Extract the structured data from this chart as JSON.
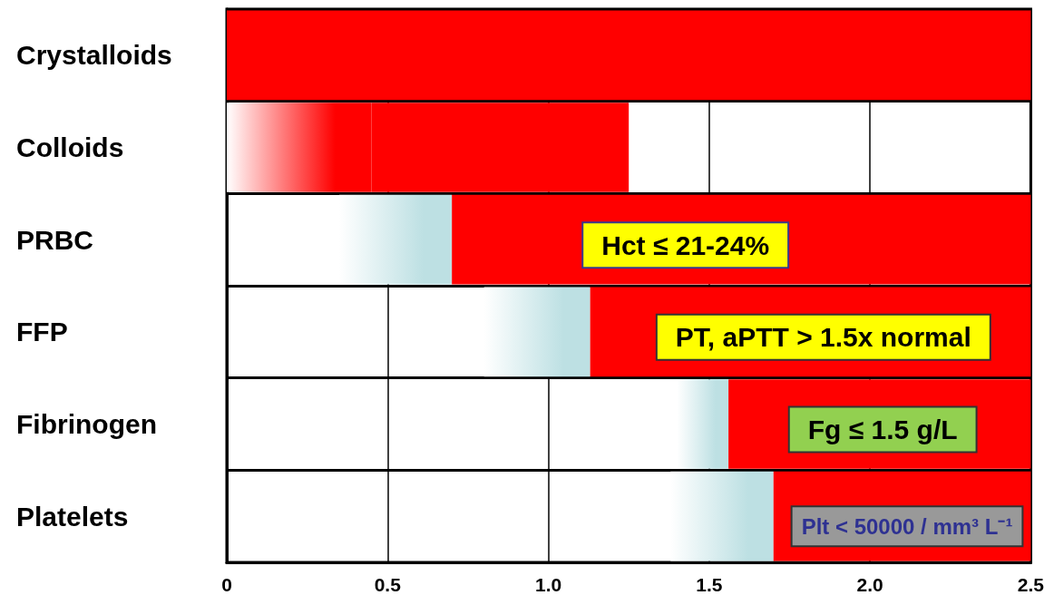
{
  "chart_data": {
    "type": "bar",
    "orientation": "horizontal",
    "categories": [
      "Crystalloids",
      "Colloids",
      "PRBC",
      "FFP",
      "Fibrinogen",
      "Platelets"
    ],
    "series": [
      {
        "colors": [
          null,
          "#ff0000",
          "#bde0e3",
          "#bde0e3",
          "#bde0e3",
          "#bde0e3"
        ],
        "base": [
          null,
          0,
          0.35,
          0.8,
          1.4,
          1.38
        ],
        "values": [
          null,
          0.45,
          0.35,
          0.33,
          0.16,
          0.32
        ]
      },
      {
        "color": "#ff0000",
        "base": [
          0,
          0.45,
          0.7,
          1.13,
          1.56,
          1.7
        ],
        "values": [
          2.5,
          0.8,
          1.8,
          1.37,
          0.94,
          0.8
        ]
      }
    ],
    "xlim": [
      0,
      2.5
    ],
    "xticks": [
      0,
      0.5,
      {
        "value": 1,
        "label": "1.0"
      },
      1.5,
      {
        "value": 2,
        "label": "2.0"
      },
      2.5
    ],
    "grid": true,
    "annotations": [
      "Hct ≤ 21-24%",
      "PT, aPTT > 1.5x normal",
      "Fg ≤ 1.5 g/L",
      "Plt < 50000 / mm³ L⁻¹"
    ]
  }
}
